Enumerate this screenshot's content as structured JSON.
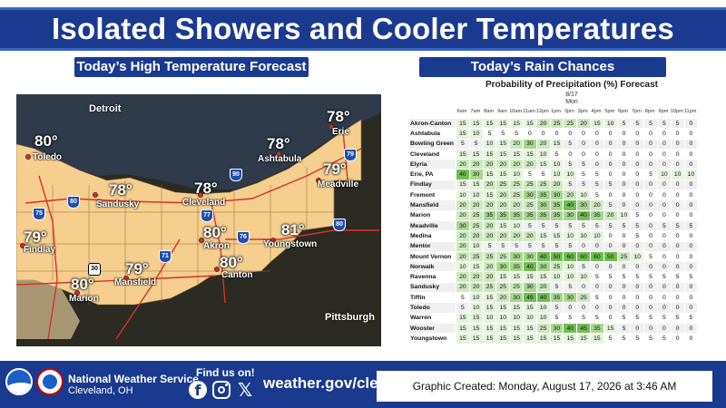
{
  "title": "Isolated Showers and Cooler Temperatures",
  "high_temp_panel": {
    "heading": "Today’s High Temperature Forecast",
    "external_cities": [
      "Detroit",
      "Pittsburgh"
    ],
    "points": [
      {
        "city": "Toledo",
        "temp": "80°"
      },
      {
        "city": "Sandusky",
        "temp": "78°"
      },
      {
        "city": "Cleveland",
        "temp": "78°"
      },
      {
        "city": "Ashtabula",
        "temp": "78°"
      },
      {
        "city": "Erie",
        "temp": "78°"
      },
      {
        "city": "Meadville",
        "temp": "79°"
      },
      {
        "city": "Findlay",
        "temp": "79°"
      },
      {
        "city": "Akron",
        "temp": "80°"
      },
      {
        "city": "Youngstown",
        "temp": "81°"
      },
      {
        "city": "Canton",
        "temp": "80°"
      },
      {
        "city": "Mansfield",
        "temp": "79°"
      },
      {
        "city": "Marion",
        "temp": "80°"
      }
    ],
    "highway_shields": [
      "75",
      "80",
      "90",
      "77",
      "76",
      "71",
      "79",
      "80",
      "30"
    ],
    "colors": {
      "region": "#f6cf8e",
      "region_light": "#fadfa9",
      "lake": "#2f3a4a",
      "ground": "#2b2b23",
      "route": "#d9322a"
    }
  },
  "rain_panel": {
    "heading": "Today’s Rain Chances",
    "chart_data": {
      "type": "table",
      "title": "Probability of Precipitation (%) Forecast",
      "date": "8/17",
      "day": "Mon",
      "hours": [
        "6am",
        "7am",
        "8am",
        "9am",
        "10am",
        "11am",
        "12pm",
        "1pm",
        "2pm",
        "3pm",
        "4pm",
        "5pm",
        "6pm",
        "7pm",
        "8pm",
        "9pm",
        "10pm",
        "11pm"
      ],
      "rows": [
        {
          "location": "Akron-Canton",
          "values": [
            15,
            15,
            15,
            15,
            15,
            15,
            20,
            25,
            25,
            20,
            15,
            10,
            5,
            5,
            5,
            5,
            5,
            0
          ]
        },
        {
          "location": "Ashtabula",
          "values": [
            15,
            10,
            5,
            5,
            5,
            0,
            0,
            0,
            0,
            0,
            0,
            0,
            0,
            0,
            0,
            0,
            0,
            0
          ]
        },
        {
          "location": "Bowling Green",
          "values": [
            5,
            5,
            10,
            15,
            20,
            30,
            20,
            15,
            5,
            0,
            0,
            0,
            0,
            0,
            0,
            0,
            0,
            0
          ]
        },
        {
          "location": "Cleveland",
          "values": [
            15,
            15,
            15,
            15,
            15,
            15,
            10,
            5,
            0,
            0,
            0,
            0,
            0,
            0,
            0,
            0,
            0,
            0
          ]
        },
        {
          "location": "Elyria",
          "values": [
            20,
            20,
            20,
            20,
            20,
            20,
            15,
            10,
            5,
            5,
            0,
            0,
            0,
            0,
            0,
            0,
            0,
            0
          ]
        },
        {
          "location": "Erie, PA",
          "values": [
            40,
            30,
            15,
            15,
            10,
            5,
            5,
            10,
            10,
            5,
            5,
            0,
            0,
            0,
            5,
            10,
            10,
            10
          ]
        },
        {
          "location": "Findlay",
          "values": [
            15,
            15,
            20,
            25,
            25,
            25,
            25,
            20,
            5,
            5,
            5,
            5,
            0,
            0,
            0,
            0,
            0,
            0
          ]
        },
        {
          "location": "Fremont",
          "values": [
            10,
            10,
            15,
            20,
            25,
            30,
            35,
            30,
            20,
            10,
            5,
            0,
            0,
            0,
            0,
            0,
            0,
            0
          ]
        },
        {
          "location": "Mansfield",
          "values": [
            20,
            20,
            20,
            20,
            20,
            25,
            30,
            35,
            40,
            30,
            20,
            5,
            0,
            0,
            0,
            0,
            0,
            0
          ]
        },
        {
          "location": "Marion",
          "values": [
            20,
            25,
            35,
            35,
            35,
            35,
            35,
            35,
            30,
            40,
            35,
            20,
            10,
            5,
            0,
            0,
            0,
            0
          ]
        },
        {
          "location": "Meadville",
          "values": [
            30,
            25,
            20,
            15,
            10,
            5,
            5,
            5,
            5,
            5,
            5,
            5,
            5,
            5,
            0,
            5,
            5,
            5
          ]
        },
        {
          "location": "Medina",
          "values": [
            20,
            20,
            20,
            20,
            20,
            20,
            15,
            15,
            10,
            10,
            10,
            0,
            0,
            5,
            0,
            0,
            0,
            0
          ]
        },
        {
          "location": "Mentor",
          "values": [
            20,
            10,
            5,
            5,
            5,
            5,
            5,
            5,
            5,
            0,
            0,
            0,
            0,
            0,
            0,
            0,
            0,
            0
          ]
        },
        {
          "location": "Mount Vernon",
          "values": [
            20,
            25,
            25,
            25,
            30,
            30,
            40,
            50,
            60,
            60,
            60,
            50,
            25,
            10,
            5,
            0,
            0,
            0
          ]
        },
        {
          "location": "Norwalk",
          "values": [
            10,
            15,
            20,
            30,
            35,
            40,
            30,
            25,
            10,
            5,
            0,
            0,
            0,
            0,
            0,
            0,
            0,
            0
          ]
        },
        {
          "location": "Ravenna",
          "values": [
            20,
            20,
            20,
            15,
            15,
            15,
            15,
            10,
            10,
            10,
            5,
            5,
            5,
            5,
            5,
            5,
            5,
            5
          ]
        },
        {
          "location": "Sandusky",
          "values": [
            20,
            20,
            25,
            25,
            25,
            30,
            20,
            5,
            5,
            0,
            0,
            0,
            0,
            0,
            0,
            0,
            0,
            0
          ]
        },
        {
          "location": "Tiffin",
          "values": [
            5,
            10,
            15,
            20,
            30,
            45,
            40,
            35,
            30,
            25,
            5,
            0,
            0,
            0,
            0,
            0,
            0,
            0
          ]
        },
        {
          "location": "Toledo",
          "values": [
            5,
            10,
            15,
            15,
            15,
            15,
            10,
            5,
            0,
            0,
            0,
            0,
            0,
            0,
            0,
            0,
            0,
            0
          ]
        },
        {
          "location": "Warren",
          "values": [
            15,
            15,
            10,
            10,
            10,
            10,
            10,
            5,
            5,
            5,
            5,
            0,
            5,
            5,
            5,
            5,
            5,
            5
          ]
        },
        {
          "location": "Wooster",
          "values": [
            15,
            15,
            15,
            15,
            15,
            15,
            25,
            30,
            40,
            45,
            35,
            15,
            5,
            0,
            0,
            0,
            0,
            0
          ]
        },
        {
          "location": "Youngstown",
          "values": [
            15,
            15,
            15,
            15,
            15,
            15,
            15,
            15,
            15,
            15,
            15,
            5,
            5,
            5,
            5,
            5,
            0,
            0
          ]
        }
      ],
      "colors": {
        "v40": "#6fbf54",
        "v30": "#a7d88f",
        "v20": "#cde9bf",
        "v10": "#e6f3de"
      }
    }
  },
  "footer": {
    "org_name": "National Weather Service",
    "office": "Cleveland, OH",
    "find_us": "Find us on!",
    "website": "weather.gov/cle",
    "created": "Graphic Created: Monday, August 17, 2026 at 3:46 AM",
    "social_icons": [
      "facebook-icon",
      "instagram-icon",
      "x-icon"
    ]
  }
}
